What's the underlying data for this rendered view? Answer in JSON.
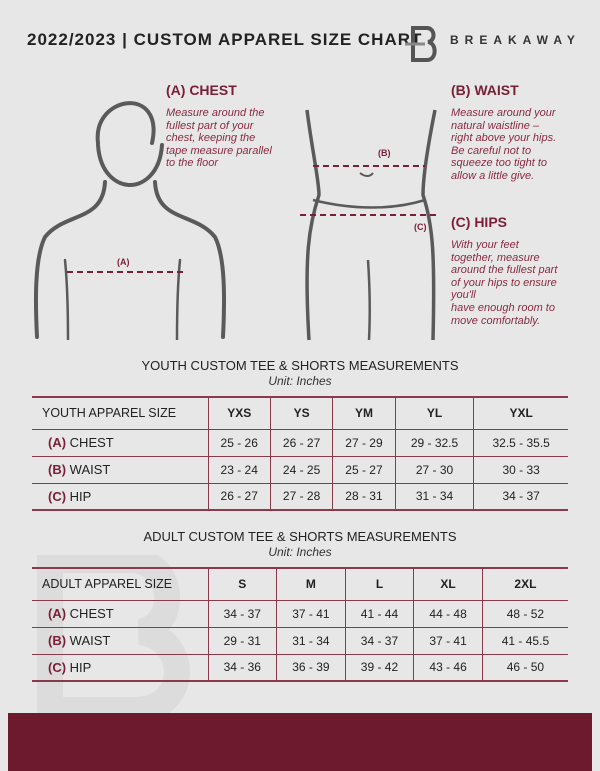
{
  "header": {
    "title": "2022/2023 | CUSTOM APPAREL SIZE CHART",
    "brand": "BREAKAWAY",
    "colors": {
      "accent": "#7a1f35",
      "footer": "#6e1a2e",
      "background": "#e7e7e8"
    }
  },
  "guide": {
    "chest": {
      "heading": "(A) CHEST",
      "marker": "(A)",
      "text": "Measure around the\nfullest part of your\nchest, keeping the\ntape measure parallel\nto the floor"
    },
    "waist": {
      "heading": "(B) WAIST",
      "marker": "(B)",
      "text": "Measure around your\nnatural waistline –\nright above your hips.\nBe careful not to\nsqueeze too tight to\nallow a little give."
    },
    "hips": {
      "heading": "(C) HIPS",
      "marker": "(C)",
      "text": "With your feet\ntogether, measure\naround the fullest part\nof your hips to ensure\nyou'll\nhave enough room to\nmove comfortably."
    }
  },
  "youth": {
    "title": "YOUTH CUSTOM TEE & SHORTS MEASUREMENTS",
    "unit": "Unit: Inches",
    "header": "YOUTH APPAREL SIZE",
    "sizes": [
      "YXS",
      "YS",
      "YM",
      "YL",
      "YXL"
    ],
    "rows": [
      {
        "code": "(A)",
        "label": "CHEST",
        "values": [
          "25 - 26",
          "26 - 27",
          "27 - 29",
          "29 - 32.5",
          "32.5 - 35.5"
        ]
      },
      {
        "code": "(B)",
        "label": "WAIST",
        "values": [
          "23 - 24",
          "24 - 25",
          "25 - 27",
          "27 - 30",
          "30 - 33"
        ]
      },
      {
        "code": "(C)",
        "label": "HIP",
        "values": [
          "26 - 27",
          "27 - 28",
          "28 - 31",
          "31 - 34",
          "34 - 37"
        ]
      }
    ]
  },
  "adult": {
    "title": "ADULT CUSTOM TEE & SHORTS MEASUREMENTS",
    "unit": "Unit: Inches",
    "header": "ADULT APPAREL SIZE",
    "sizes": [
      "S",
      "M",
      "L",
      "XL",
      "2XL"
    ],
    "rows": [
      {
        "code": "(A)",
        "label": "CHEST",
        "values": [
          "34 - 37",
          "37 - 41",
          "41 - 44",
          "44 - 48",
          "48 - 52"
        ]
      },
      {
        "code": "(B)",
        "label": "WAIST",
        "values": [
          "29 - 31",
          "31 - 34",
          "34 - 37",
          "37 - 41",
          "41 - 45.5"
        ]
      },
      {
        "code": "(C)",
        "label": "HIP",
        "values": [
          "34 - 36",
          "36 - 39",
          "39 - 42",
          "43 - 46",
          "46 - 50"
        ]
      }
    ]
  }
}
